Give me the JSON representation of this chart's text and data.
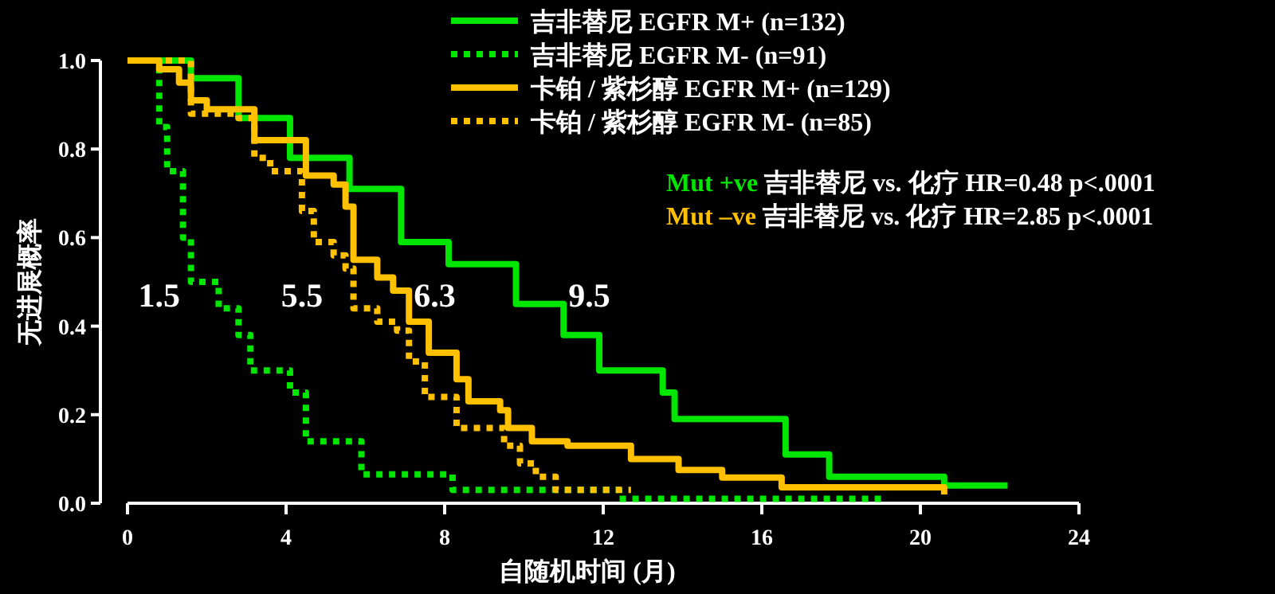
{
  "chart_data": {
    "type": "step",
    "xlabel": "自随机时间 (月)",
    "ylabel": "无进展概率",
    "xlim": [
      0,
      24
    ],
    "ylim": [
      0,
      1
    ],
    "xticks": [
      0,
      4,
      8,
      12,
      16,
      20,
      24
    ],
    "yticks": [
      {
        "value": 0,
        "label": "0.0"
      },
      {
        "value": 0.2,
        "label": "0.2"
      },
      {
        "value": 0.4,
        "label": "0.4"
      },
      {
        "value": 0.6,
        "label": "0.6"
      },
      {
        "value": 0.8,
        "label": "0.8"
      },
      {
        "value": 1,
        "label": "1.0"
      }
    ],
    "grid": false,
    "legend": "top",
    "marker": "none",
    "series": [
      {
        "name": "吉非替尼 EGFR M+ (n=132)",
        "color": "#00e600",
        "line_style": "solid",
        "x": [
          0,
          1.6,
          2.8,
          4.1,
          5.6,
          6.9,
          8.1,
          9.8,
          11.0,
          11.9,
          13.5,
          13.8,
          16.6,
          17.7,
          20.6,
          22.2
        ],
        "values": [
          1.0,
          0.96,
          0.87,
          0.78,
          0.71,
          0.59,
          0.54,
          0.45,
          0.38,
          0.3,
          0.25,
          0.19,
          0.11,
          0.06,
          0.04,
          0.04
        ]
      },
      {
        "name": "吉非替尼 EGFR M- (n=91)",
        "color": "#00e600",
        "line_style": "dotted",
        "x": [
          0,
          0.8,
          1.0,
          1.4,
          1.6,
          2.3,
          2.8,
          3.1,
          4.1,
          4.5,
          5.9,
          8.2,
          9.0,
          12.4,
          19.1
        ],
        "values": [
          1.0,
          0.85,
          0.75,
          0.6,
          0.5,
          0.44,
          0.38,
          0.3,
          0.25,
          0.14,
          0.065,
          0.03,
          0.03,
          0.01,
          0.01
        ]
      },
      {
        "name": "卡铂 / 紫杉醇 EGFR M+ (n=129)",
        "color": "#ffc000",
        "line_style": "solid",
        "x": [
          0,
          0.8,
          1.3,
          1.6,
          2.0,
          3.2,
          4.5,
          5.2,
          5.5,
          5.7,
          6.3,
          6.7,
          7.1,
          7.6,
          8.3,
          8.6,
          9.4,
          9.6,
          10.2,
          11.1,
          12.7,
          13.9,
          15.0,
          16.5,
          20.6
        ],
        "values": [
          1.0,
          0.98,
          0.95,
          0.91,
          0.89,
          0.82,
          0.74,
          0.72,
          0.67,
          0.55,
          0.51,
          0.48,
          0.41,
          0.34,
          0.28,
          0.23,
          0.21,
          0.17,
          0.14,
          0.13,
          0.1,
          0.075,
          0.058,
          0.036,
          0.02
        ]
      },
      {
        "name": "卡铂 / 紫杉醇 EGFR M- (n=85)",
        "color": "#ffc000",
        "line_style": "dotted",
        "x": [
          0,
          1.6,
          2.8,
          3.2,
          3.6,
          4.4,
          4.7,
          5.2,
          5.5,
          5.7,
          6.3,
          6.8,
          7.1,
          7.5,
          8.3,
          9.5,
          9.9,
          10.3,
          10.8,
          12.7
        ],
        "values": [
          1.0,
          0.88,
          0.87,
          0.78,
          0.75,
          0.66,
          0.59,
          0.56,
          0.53,
          0.44,
          0.41,
          0.39,
          0.32,
          0.24,
          0.17,
          0.13,
          0.09,
          0.06,
          0.03,
          0.03
        ]
      }
    ],
    "annotations": [
      "1.5",
      "5.5",
      "6.3",
      "9.5",
      "Mut +ve 吉非替尼 vs. 化疗  HR=0.48 p<.0001",
      "Mut –ve 吉非替尼 vs. 化疗  HR=2.85 p<.0001"
    ]
  }
}
